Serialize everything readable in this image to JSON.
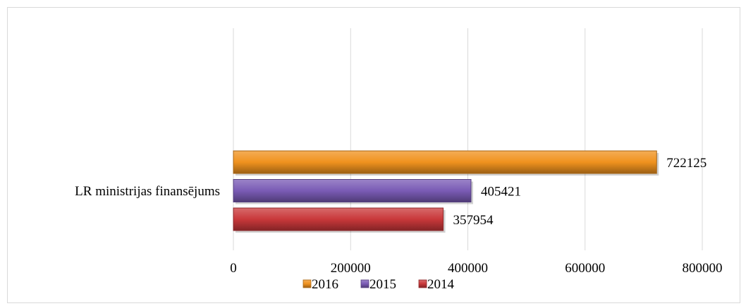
{
  "chart_data": {
    "type": "bar",
    "orientation": "horizontal",
    "categories": [
      "LR ministrijas finansējums"
    ],
    "series": [
      {
        "name": "2016",
        "values": [
          722125
        ],
        "color": "#f0921e"
      },
      {
        "name": "2015",
        "values": [
          405421
        ],
        "color": "#7a5bb5"
      },
      {
        "name": "2014",
        "values": [
          357954
        ],
        "color": "#c9383a"
      }
    ],
    "xlim": [
      0,
      800000
    ],
    "xticks": [
      0,
      200000,
      400000,
      600000,
      800000
    ],
    "xtick_labels": [
      "0",
      "200000",
      "400000",
      "600000",
      "800000"
    ],
    "grid": true,
    "legend": "bottom",
    "data_labels": true
  }
}
